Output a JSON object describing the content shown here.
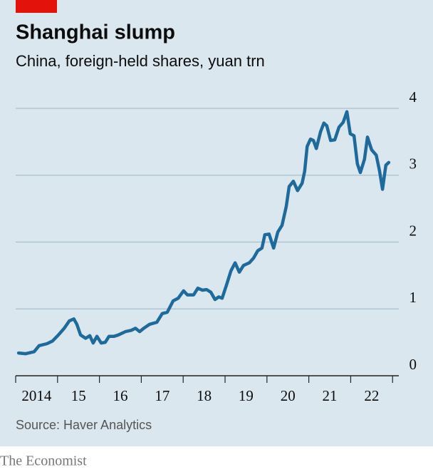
{
  "chart_data": {
    "type": "line",
    "title": "Shanghai slump",
    "subtitle": "China, foreign-held shares, yuan trn",
    "source": "Source: Haver Analytics",
    "brand": "The Economist",
    "xlim": [
      2014,
      2023.2
    ],
    "xticks": [
      {
        "value": 2014.5,
        "label": "2014"
      },
      {
        "value": 2015.5,
        "label": "15"
      },
      {
        "value": 2016.5,
        "label": "16"
      },
      {
        "value": 2017.5,
        "label": "17"
      },
      {
        "value": 2018.5,
        "label": "18"
      },
      {
        "value": 2019.5,
        "label": "19"
      },
      {
        "value": 2020.5,
        "label": "20"
      },
      {
        "value": 2021.5,
        "label": "21"
      },
      {
        "value": 2022.5,
        "label": "22"
      }
    ],
    "ylim": [
      0,
      4
    ],
    "yticks": [
      0,
      1,
      2,
      3,
      4
    ],
    "grid": true,
    "x": [
      2014.07,
      2014.24,
      2014.44,
      2014.56,
      2014.75,
      2014.88,
      2015.02,
      2015.16,
      2015.28,
      2015.39,
      2015.46,
      2015.55,
      2015.67,
      2015.77,
      2015.85,
      2015.94,
      2016.04,
      2016.14,
      2016.23,
      2016.35,
      2016.45,
      2016.62,
      2016.76,
      2016.86,
      2016.96,
      2017.06,
      2017.2,
      2017.37,
      2017.5,
      2017.62,
      2017.76,
      2017.88,
      2018.01,
      2018.1,
      2018.25,
      2018.35,
      2018.46,
      2018.56,
      2018.66,
      2018.76,
      2018.85,
      2018.93,
      2019.03,
      2019.14,
      2019.24,
      2019.34,
      2019.44,
      2019.58,
      2019.68,
      2019.78,
      2019.88,
      2019.95,
      2020.05,
      2020.16,
      2020.26,
      2020.36,
      2020.46,
      2020.53,
      2020.63,
      2020.73,
      2020.84,
      2020.9,
      2020.96,
      2021.04,
      2021.11,
      2021.18,
      2021.28,
      2021.36,
      2021.43,
      2021.52,
      2021.62,
      2021.72,
      2021.82,
      2021.91,
      2021.99,
      2022.08,
      2022.16,
      2022.23,
      2022.33,
      2022.4,
      2022.5,
      2022.61,
      2022.69,
      2022.76,
      2022.84,
      2022.91
    ],
    "series": [
      {
        "name": "Foreign-held shares",
        "color": "#1d6a9b",
        "values": [
          0.34,
          0.33,
          0.36,
          0.45,
          0.48,
          0.52,
          0.61,
          0.71,
          0.82,
          0.85,
          0.77,
          0.61,
          0.56,
          0.6,
          0.49,
          0.59,
          0.49,
          0.5,
          0.59,
          0.59,
          0.61,
          0.66,
          0.68,
          0.71,
          0.66,
          0.71,
          0.77,
          0.8,
          0.93,
          0.95,
          1.12,
          1.16,
          1.27,
          1.21,
          1.21,
          1.31,
          1.28,
          1.29,
          1.25,
          1.14,
          1.18,
          1.16,
          1.35,
          1.57,
          1.69,
          1.55,
          1.65,
          1.69,
          1.76,
          1.87,
          1.91,
          2.11,
          2.12,
          1.91,
          2.15,
          2.25,
          2.53,
          2.83,
          2.91,
          2.77,
          2.88,
          3.06,
          3.43,
          3.54,
          3.52,
          3.4,
          3.65,
          3.78,
          3.74,
          3.52,
          3.53,
          3.72,
          3.79,
          3.95,
          3.62,
          3.59,
          3.17,
          3.04,
          3.24,
          3.57,
          3.38,
          3.3,
          3.06,
          2.79,
          3.15,
          3.19
        ]
      }
    ]
  }
}
